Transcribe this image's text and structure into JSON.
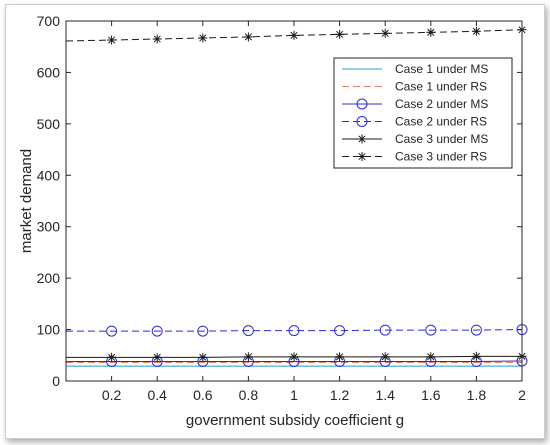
{
  "chart_data": {
    "type": "line",
    "xlabel": "government subsidy coefficient g",
    "ylabel": "market demand",
    "xlim": [
      0,
      2
    ],
    "ylim": [
      0,
      700
    ],
    "xticks": [
      0.2,
      0.4,
      0.6,
      0.8,
      1,
      1.2,
      1.4,
      1.6,
      1.8,
      2
    ],
    "yticks": [
      0,
      100,
      200,
      300,
      400,
      500,
      600,
      700
    ],
    "x": [
      0.2,
      0.4,
      0.6,
      0.8,
      1.0,
      1.2,
      1.4,
      1.6,
      1.8,
      2.0
    ],
    "legend_position": "top-right",
    "grid": false,
    "series": [
      {
        "name": "Case 1 under MS",
        "color": "#1fa0c8",
        "dash": "solid",
        "marker": "none",
        "values": [
          29,
          29,
          29,
          29,
          29,
          29,
          29,
          29,
          29,
          29
        ],
        "line_x": [
          0,
          2
        ]
      },
      {
        "name": "Case 1 under RS",
        "color": "#e8825a",
        "dash": "dashed",
        "marker": "none",
        "values": [
          36,
          36,
          36,
          36,
          36,
          36,
          36,
          36,
          36,
          36
        ],
        "line_x": [
          0,
          2
        ]
      },
      {
        "name": "Case 2 under MS",
        "color": "#2b2bd9",
        "dash": "solid",
        "marker": "circle",
        "values": [
          38,
          38,
          38,
          38,
          38,
          38,
          38,
          38,
          38,
          39
        ],
        "line_x": [
          0,
          2
        ]
      },
      {
        "name": "Case 2 under RS",
        "color": "#2b2bd9",
        "dash": "dashed",
        "marker": "circle",
        "values": [
          97,
          97,
          97,
          98,
          98,
          98,
          99,
          99,
          99,
          100
        ],
        "line_x": [
          0,
          2
        ]
      },
      {
        "name": "Case 3 under MS",
        "color": "#1a1a1a",
        "dash": "solid",
        "marker": "star",
        "values": [
          46,
          46,
          46,
          47,
          47,
          47,
          47,
          47,
          48,
          48
        ],
        "line_x": [
          0,
          2
        ]
      },
      {
        "name": "Case 3 under RS",
        "color": "#1a1a1a",
        "dash": "dashed",
        "marker": "star",
        "values": [
          663,
          665,
          667,
          669,
          672,
          674,
          676,
          678,
          680,
          683
        ],
        "line_x": [
          0,
          2
        ],
        "line_start_value": 661
      }
    ]
  }
}
